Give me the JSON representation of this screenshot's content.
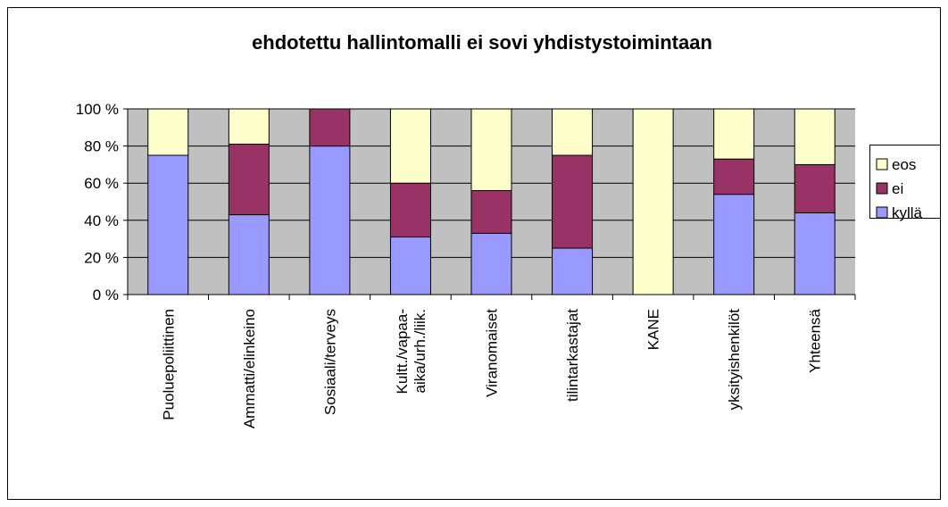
{
  "chart_data": {
    "type": "bar",
    "stacked": true,
    "title": "ehdotettu hallintomalli ei sovi yhdistystoimintaan",
    "categories": [
      "Puoluepoliittinen",
      "Ammatti/elinkeino",
      "Sosiaali/terveys",
      "Kultt./vapaa-aika/urh./liik.",
      "Viranomaiset",
      "tilintarkastajat",
      "KANE",
      "yksityishenkilöt",
      "Yhteensä"
    ],
    "series": [
      {
        "name": "kyllä",
        "color": "#9999ff",
        "values": [
          75,
          43,
          80,
          31,
          33,
          25,
          0,
          54,
          44
        ]
      },
      {
        "name": "ei",
        "color": "#993366",
        "values": [
          0,
          38,
          20,
          29,
          23,
          50,
          0,
          19,
          26
        ]
      },
      {
        "name": "eos",
        "color": "#ffffcc",
        "values": [
          25,
          19,
          0,
          40,
          44,
          25,
          100,
          27,
          30
        ]
      }
    ],
    "ylim": [
      0,
      100
    ],
    "yticks": [
      {
        "value": 0,
        "label": "0 %"
      },
      {
        "value": 20,
        "label": "20 %"
      },
      {
        "value": 40,
        "label": "40 %"
      },
      {
        "value": 60,
        "label": "60 %"
      },
      {
        "value": 80,
        "label": "80 %"
      },
      {
        "value": 100,
        "label": "100 %"
      }
    ],
    "grid": true,
    "legend": "right"
  }
}
